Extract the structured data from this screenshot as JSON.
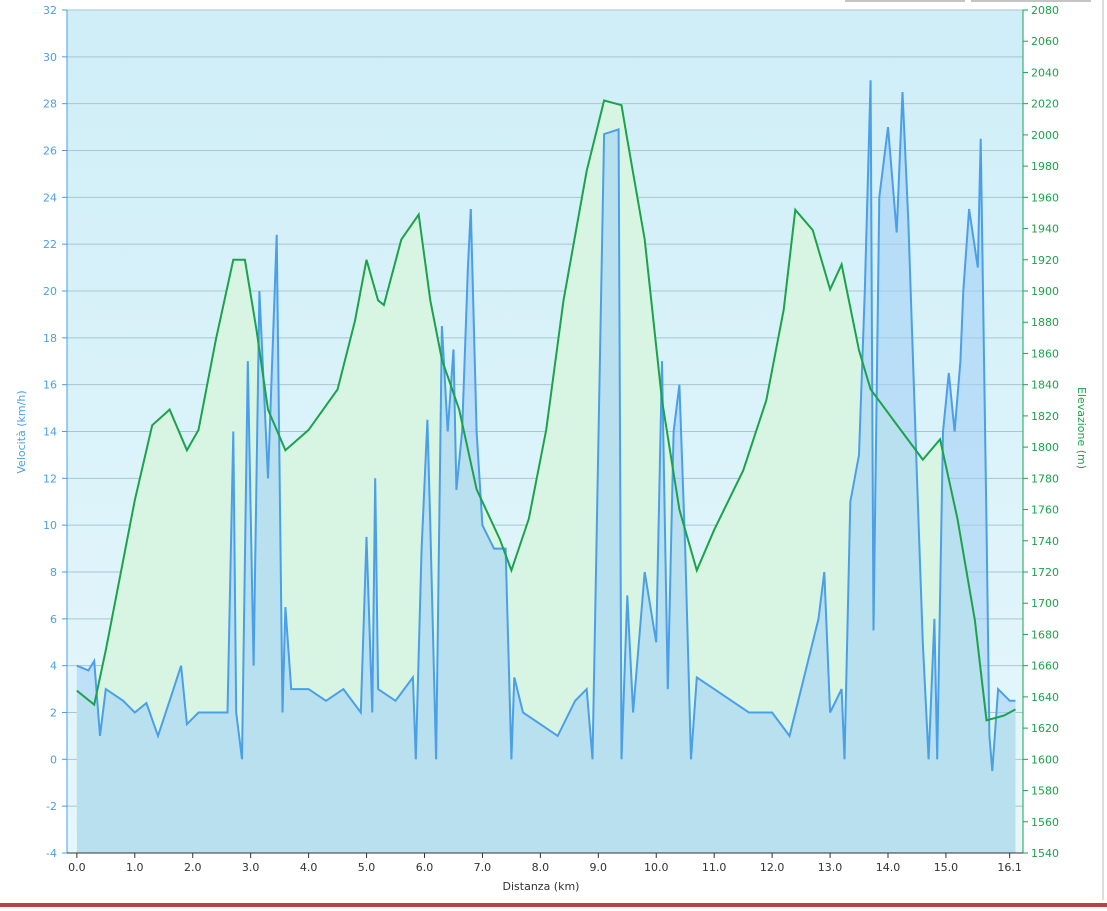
{
  "chart_data": {
    "type": "line",
    "xlabel": "Distanza  (km)",
    "ylabel": "Velocità (km/h)",
    "y2label": "Elevazione (m)",
    "xlim": [
      -0.17,
      16.33
    ],
    "xticks": [
      {
        "value": 0,
        "label": "0.0"
      },
      {
        "value": 1,
        "label": "1.0"
      },
      {
        "value": 2,
        "label": "2.0"
      },
      {
        "value": 3,
        "label": "3.0"
      },
      {
        "value": 4,
        "label": "4.0"
      },
      {
        "value": 5,
        "label": "5.0"
      },
      {
        "value": 6,
        "label": "6.0"
      },
      {
        "value": 7,
        "label": "7.0"
      },
      {
        "value": 8,
        "label": "8.0"
      },
      {
        "value": 9,
        "label": "9.0"
      },
      {
        "value": 10,
        "label": "10.0"
      },
      {
        "value": 11,
        "label": "11.0"
      },
      {
        "value": 12,
        "label": "12.0"
      },
      {
        "value": 13,
        "label": "13.0"
      },
      {
        "value": 14,
        "label": "14.0"
      },
      {
        "value": 15,
        "label": "15.0"
      },
      {
        "value": 16.1,
        "label": "16.1"
      }
    ],
    "ylim": [
      -4,
      32
    ],
    "yticks": [
      -4,
      -2,
      0,
      2,
      4,
      6,
      8,
      10,
      12,
      14,
      16,
      18,
      20,
      22,
      24,
      26,
      28,
      30,
      32
    ],
    "y2lim": [
      1540,
      2080
    ],
    "y2ticks": [
      1540,
      1560,
      1580,
      1600,
      1620,
      1640,
      1660,
      1680,
      1700,
      1720,
      1740,
      1760,
      1780,
      1800,
      1820,
      1840,
      1860,
      1880,
      1900,
      1920,
      1940,
      1960,
      1980,
      2000,
      2020,
      2040,
      2060,
      2080
    ],
    "grid": true,
    "series": [
      {
        "color": "#1aa34a",
        "fill": "#d8f5e4",
        "axis": "y2",
        "x": [
          0,
          0.3,
          0.5,
          1.0,
          1.3,
          1.6,
          1.9,
          2.1,
          2.4,
          2.7,
          2.9,
          3.1,
          3.3,
          3.6,
          4.0,
          4.5,
          4.8,
          5.0,
          5.2,
          5.3,
          5.6,
          5.9,
          6.1,
          6.3,
          6.6,
          6.9,
          7.3,
          7.5,
          7.8,
          8.1,
          8.4,
          8.8,
          9.1,
          9.4,
          9.5,
          9.8,
          10.1,
          10.4,
          10.7,
          11.0,
          11.5,
          11.9,
          12.2,
          12.4,
          12.7,
          13.0,
          13.2,
          13.5,
          13.7,
          14.1,
          14.6,
          14.9,
          15.2,
          15.5,
          15.7,
          16.0,
          16.2
        ],
        "values": [
          1644,
          1635,
          1670,
          1766,
          1814,
          1824,
          1798,
          1811,
          1869,
          1920,
          1920,
          1875,
          1824,
          1798,
          1811,
          1837,
          1881,
          1920,
          1894,
          1891,
          1933,
          1949,
          1894,
          1856,
          1824,
          1773,
          1741,
          1721,
          1754,
          1811,
          1894,
          1977,
          2022,
          2019,
          1997,
          1933,
          1830,
          1760,
          1721,
          1747,
          1785,
          1830,
          1888,
          1952,
          1939,
          1901,
          1917,
          1862,
          1837,
          1817,
          1792,
          1805,
          1754,
          1689,
          1625,
          1628,
          1632
        ]
      },
      {
        "color": "#4a9fe8",
        "fill": "rgba(160,205,245,0.55)",
        "axis": "y",
        "x": [
          0.0,
          0.2,
          0.3,
          0.4,
          0.5,
          0.8,
          1.0,
          1.2,
          1.4,
          1.6,
          1.8,
          1.9,
          2.1,
          2.4,
          2.6,
          2.7,
          2.75,
          2.85,
          2.95,
          3.05,
          3.15,
          3.3,
          3.45,
          3.55,
          3.6,
          3.7,
          4.0,
          4.3,
          4.6,
          4.9,
          5.0,
          5.1,
          5.15,
          5.2,
          5.5,
          5.8,
          5.85,
          5.95,
          6.05,
          6.1,
          6.2,
          6.3,
          6.4,
          6.5,
          6.55,
          6.65,
          6.75,
          6.8,
          6.9,
          7.0,
          7.2,
          7.4,
          7.5,
          7.55,
          7.7,
          8.0,
          8.3,
          8.6,
          8.8,
          8.9,
          9.1,
          9.35,
          9.4,
          9.5,
          9.6,
          9.8,
          10.0,
          10.1,
          10.2,
          10.3,
          10.4,
          10.5,
          10.6,
          10.7,
          11.0,
          11.3,
          11.6,
          12.0,
          12.3,
          12.5,
          12.8,
          12.9,
          13.0,
          13.2,
          13.25,
          13.35,
          13.5,
          13.6,
          13.7,
          13.75,
          13.85,
          14.0,
          14.15,
          14.25,
          14.35,
          14.5,
          14.6,
          14.7,
          14.8,
          14.85,
          14.95,
          15.05,
          15.15,
          15.25,
          15.3,
          15.4,
          15.55,
          15.6,
          15.7,
          15.75,
          15.8,
          15.9,
          16.1,
          16.2
        ],
        "values": [
          4.0,
          3.8,
          4.2,
          1.0,
          3.0,
          2.5,
          2.0,
          2.4,
          1.0,
          2.5,
          4.0,
          1.5,
          2.0,
          2.0,
          2.0,
          14,
          2.0,
          0,
          17,
          4,
          20,
          12,
          22.4,
          2,
          6.5,
          3,
          3,
          2.5,
          3,
          2,
          9.5,
          2,
          12,
          3,
          2.5,
          3.5,
          0,
          9,
          14.5,
          10,
          0,
          18.5,
          14,
          17.5,
          11.5,
          14,
          21,
          23.5,
          14,
          10,
          9,
          9,
          0,
          3.5,
          2,
          1.5,
          1,
          2.5,
          3,
          0,
          26.7,
          26.9,
          0,
          7,
          2,
          8,
          5,
          17,
          3,
          14,
          16,
          9,
          0,
          3.5,
          3,
          2.5,
          2,
          2,
          1,
          3,
          6,
          8,
          2,
          3,
          0,
          11,
          13,
          20,
          29,
          5.5,
          24,
          27,
          22.5,
          28.5,
          23,
          12,
          5,
          0,
          6,
          0,
          14,
          16.5,
          14,
          17,
          20,
          23.5,
          21,
          26.5,
          10,
          1,
          -0.5,
          3,
          2.5,
          2.5
        ]
      }
    ]
  }
}
